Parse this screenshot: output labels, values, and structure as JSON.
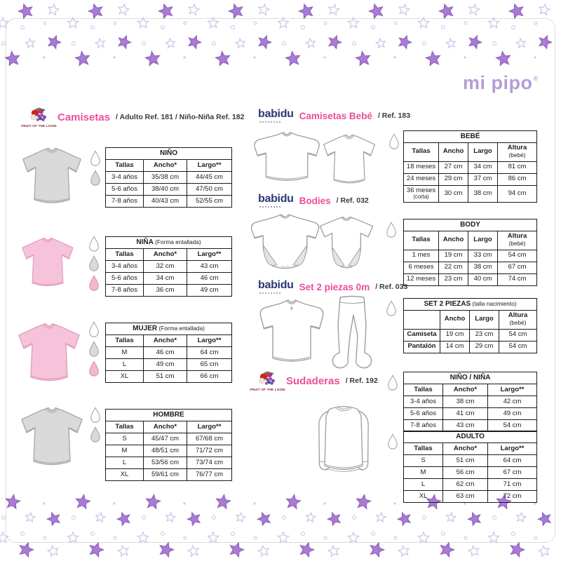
{
  "logo": {
    "text": "mi pipo",
    "registered": "®"
  },
  "palette": {
    "title_pink": "#ee4d9b",
    "babidu_navy": "#2b3a74",
    "mipipo_purple": "#b59cd9",
    "star_filled": "#a87cd5",
    "star_filled_stroke": "#8f63bd",
    "star_outline": "#ccc2e6",
    "dot_outline": "#c8c8d8",
    "dot_filled": "#cfcadf"
  },
  "garment_palette": {
    "grey": {
      "fill": "#d9d9d9",
      "stroke": "#a9a9a9",
      "flap": "#cccccc"
    },
    "pink": {
      "fill": "#f6c3da",
      "stroke": "#df9dbd",
      "flap": "#eeb0cb"
    },
    "white": {
      "fill": "#ffffff",
      "stroke": "#9d9d9d",
      "flap": "#e4e4e4"
    }
  },
  "droplet_palette": {
    "white": {
      "fill": "#ffffff",
      "stroke": "#a9a9a9"
    },
    "grey": {
      "fill": "#d9d9d9",
      "stroke": "#a9a9a9"
    },
    "pink": {
      "fill": "#f2b9d2",
      "stroke": "#d893b4"
    }
  },
  "sections": {
    "camisetas": {
      "logo": "FRUIT OF THE LOOM.",
      "title": "Camisetas",
      "subtitle": "/ Adulto Ref. 181 / Niño-Niña Ref. 182"
    },
    "camisetas_bebe": {
      "brand": "babidu",
      "title": "Camisetas Bebé",
      "subtitle": "/ Ref. 183"
    },
    "bodies": {
      "brand": "babidu",
      "title": "Bodies",
      "subtitle": "/ Ref. 032"
    },
    "set_2_piezas": {
      "brand": "babidu",
      "title": "Set 2 piezas 0m",
      "subtitle": "/ Ref. 033"
    },
    "sudaderas": {
      "logo": "FRUIT OF THE LOOM.",
      "title": "Sudaderas",
      "subtitle": "/ Ref. 192"
    }
  },
  "tables": {
    "nino": {
      "title": "NIÑO",
      "note": "",
      "headers": [
        "Tallas",
        "Ancho*",
        "Largo**"
      ],
      "rows": [
        [
          "3-4 años",
          "35/38 cm",
          "44/45 cm"
        ],
        [
          "5-6 años",
          "38/40 cm",
          "47/50 cm"
        ],
        [
          "7-8 años",
          "40/43 cm",
          "52/55 cm"
        ]
      ]
    },
    "nina": {
      "title": "NIÑA",
      "note": "(Forma entallada)",
      "headers": [
        "Tallas",
        "Ancho*",
        "Largo**"
      ],
      "rows": [
        [
          "3-4 años",
          "32 cm",
          "43 cm"
        ],
        [
          "5-6 años",
          "34 cm",
          "46 cm"
        ],
        [
          "7-8 años",
          "36 cm",
          "49 cm"
        ]
      ]
    },
    "mujer": {
      "title": "MUJER",
      "note": "(Forma entallada)",
      "headers": [
        "Tallas",
        "Ancho*",
        "Largo**"
      ],
      "rows": [
        [
          "M",
          "46 cm",
          "64 cm"
        ],
        [
          "L",
          "49 cm",
          "65 cm"
        ],
        [
          "XL",
          "51 cm",
          "66 cm"
        ]
      ]
    },
    "hombre": {
      "title": "HOMBRE",
      "note": "",
      "headers": [
        "Tallas",
        "Ancho*",
        "Largo**"
      ],
      "rows": [
        [
          "S",
          "45/47 cm",
          "67/68 cm"
        ],
        [
          "M",
          "48/51 cm",
          "71/72 cm"
        ],
        [
          "L",
          "53/56 cm",
          "73/74 cm"
        ],
        [
          "XL",
          "59/61 cm",
          "76/77 cm"
        ]
      ]
    },
    "bebe": {
      "title": "BEBÉ",
      "note": "",
      "headers": [
        "Tallas",
        "Ancho",
        "Largo",
        "Altura (bebé)"
      ],
      "rows": [
        [
          "18 meses",
          "27 cm",
          "34 cm",
          "81 cm"
        ],
        [
          "24 meses",
          "29 cm",
          "37 cm",
          "86 cm"
        ],
        [
          "36 meses\n(corta)",
          "30 cm",
          "38 cm",
          "94 cm"
        ]
      ]
    },
    "body": {
      "title": "BODY",
      "note": "",
      "headers": [
        "Tallas",
        "Ancho",
        "Largo",
        "Altura (bebé)"
      ],
      "rows": [
        [
          "1 mes",
          "19 cm",
          "33 cm",
          "54 cm"
        ],
        [
          "6 meses",
          "22 cm",
          "38 cm",
          "67 cm"
        ],
        [
          "12 meses",
          "23 cm",
          "40 cm",
          "74 cm"
        ]
      ]
    },
    "set2": {
      "title": "SET 2 PIEZAS",
      "note": "(talla nacimiento)",
      "bold_first_col": true,
      "headers": [
        "",
        "Ancho",
        "Largo",
        "Altura (bebé)"
      ],
      "rows": [
        [
          "Camiseta",
          "19 cm",
          "23 cm",
          "54 cm"
        ],
        [
          "Pantalón",
          "14 cm",
          "29 cm",
          "54 cm"
        ]
      ]
    },
    "nino_nina": {
      "title": "NIÑO / NIÑA",
      "note": "",
      "headers": [
        "Tallas",
        "Ancho*",
        "Largo**"
      ],
      "rows": [
        [
          "3-4 años",
          "38 cm",
          "42 cm"
        ],
        [
          "5-6 años",
          "41 cm",
          "49 cm"
        ],
        [
          "7-8 años",
          "43 cm",
          "54 cm"
        ]
      ]
    },
    "adulto": {
      "title": "ADULTO",
      "note": "",
      "headers": [
        "Tallas",
        "Ancho*",
        "Largo**"
      ],
      "rows": [
        [
          "S",
          "51 cm",
          "64 cm"
        ],
        [
          "M",
          "56 cm",
          "67 cm"
        ],
        [
          "L",
          "62 cm",
          "71 cm"
        ],
        [
          "XL",
          "63 cm",
          "72 cm"
        ]
      ]
    }
  },
  "droplets": {
    "nino": [
      "white",
      "grey"
    ],
    "nina": [
      "white",
      "grey",
      "pink"
    ],
    "mujer": [
      "white",
      "grey",
      "pink"
    ],
    "hombre": [
      "white",
      "grey"
    ],
    "bebe": [
      "white"
    ],
    "body": [
      "white"
    ],
    "set2": [
      "white"
    ],
    "nino_nina": [
      "white"
    ],
    "adulto": [
      "white"
    ]
  }
}
